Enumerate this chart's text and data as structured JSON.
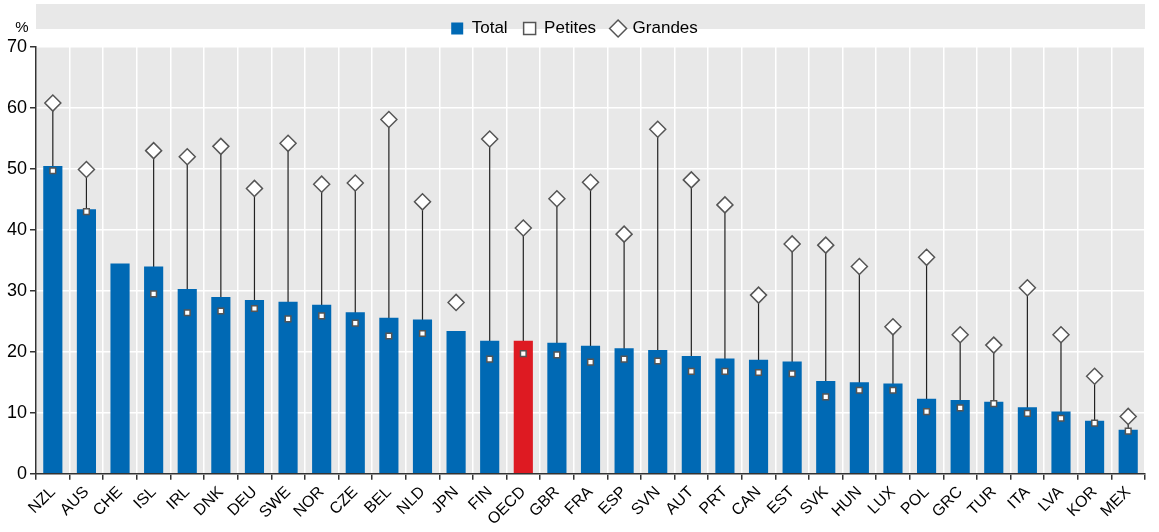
{
  "chart_data": {
    "type": "bar",
    "ylabel": "%",
    "categories": [
      "NZL",
      "AUS",
      "CHE",
      "ISL",
      "IRL",
      "DNK",
      "DEU",
      "SWE",
      "NOR",
      "CZE",
      "BEL",
      "NLD",
      "JPN",
      "FIN",
      "OECD",
      "GBR",
      "FRA",
      "ESP",
      "SVN",
      "AUT",
      "PRT",
      "CAN",
      "EST",
      "SVK",
      "HUN",
      "LUX",
      "POL",
      "GRC",
      "TUR",
      "ITA",
      "LVA",
      "KOR",
      "MEX"
    ],
    "series": [
      {
        "name": "Total",
        "color": "#0069b4",
        "colors": [
          "#0069b4",
          "#0069b4",
          "#0069b4",
          "#0069b4",
          "#0069b4",
          "#0069b4",
          "#0069b4",
          "#0069b4",
          "#0069b4",
          "#0069b4",
          "#0069b4",
          "#0069b4",
          "#0069b4",
          "#0069b4",
          "#de1a22",
          "#0069b4",
          "#0069b4",
          "#0069b4",
          "#0069b4",
          "#0069b4",
          "#0069b4",
          "#0069b4",
          "#0069b4",
          "#0069b4",
          "#0069b4",
          "#0069b4",
          "#0069b4",
          "#0069b4",
          "#0069b4",
          "#0069b4",
          "#0069b4",
          "#0069b4",
          "#0069b4"
        ],
        "values": [
          50.5,
          43.4,
          34.5,
          34,
          30.3,
          29,
          28.5,
          28.2,
          27.7,
          26.5,
          25.6,
          25.3,
          23.4,
          21.8,
          21.8,
          21.5,
          21,
          20.6,
          20.3,
          19.3,
          18.9,
          18.7,
          18.4,
          15.2,
          15,
          14.8,
          12.3,
          12.1,
          11.8,
          10.9,
          10.2,
          8.7,
          7.2
        ]
      },
      {
        "name": "Petites",
        "type": "scatter",
        "marker": "square",
        "color": "#ffffff",
        "values": [
          49.7,
          43,
          null,
          29.5,
          26.4,
          26.7,
          27.1,
          25.4,
          25.9,
          24.7,
          22.6,
          23,
          null,
          18.8,
          19.7,
          19.5,
          18.3,
          18.8,
          18.5,
          16.8,
          16.8,
          16.6,
          16.4,
          12.6,
          13.7,
          13.7,
          10.2,
          10.8,
          11.5,
          9.9,
          9.1,
          8.3,
          7
        ]
      },
      {
        "name": "Grandes",
        "type": "scatter",
        "marker": "diamond",
        "color": "#ffffff",
        "values": [
          60.8,
          49.9,
          null,
          53,
          52,
          53.7,
          46.8,
          54.2,
          47.5,
          47.7,
          58.1,
          44.6,
          28.1,
          54.9,
          40.3,
          45.1,
          47.8,
          39.3,
          56.5,
          48.2,
          44.1,
          29.3,
          37.7,
          37.5,
          34,
          24.1,
          35.5,
          22.8,
          21.1,
          30.5,
          22.8,
          16,
          9.4
        ]
      }
    ],
    "ylim": [
      0,
      70
    ],
    "yticks": [
      0,
      10,
      20,
      30,
      40,
      50,
      60,
      70
    ],
    "grid": true,
    "legend": "top"
  }
}
